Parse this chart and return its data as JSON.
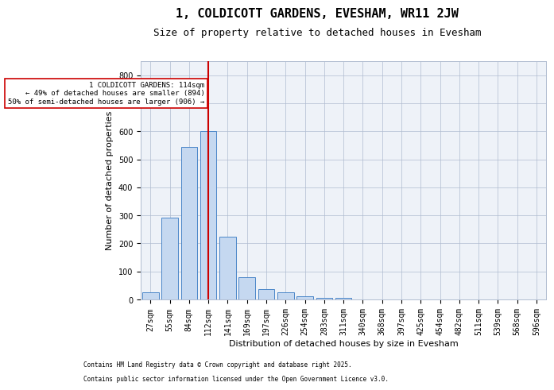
{
  "title1": "1, COLDICOTT GARDENS, EVESHAM, WR11 2JW",
  "title2": "Size of property relative to detached houses in Evesham",
  "xlabel": "Distribution of detached houses by size in Evesham",
  "ylabel": "Number of detached properties",
  "categories": [
    "27sqm",
    "55sqm",
    "84sqm",
    "112sqm",
    "141sqm",
    "169sqm",
    "197sqm",
    "226sqm",
    "254sqm",
    "283sqm",
    "311sqm",
    "340sqm",
    "368sqm",
    "397sqm",
    "425sqm",
    "454sqm",
    "482sqm",
    "511sqm",
    "539sqm",
    "568sqm",
    "596sqm"
  ],
  "values": [
    25,
    292,
    545,
    600,
    225,
    80,
    38,
    25,
    10,
    7,
    5,
    0,
    0,
    0,
    0,
    0,
    0,
    0,
    0,
    0,
    0
  ],
  "bar_color": "#c5d8f0",
  "bar_edge_color": "#4a86c8",
  "vline_x_index": 3,
  "vline_color": "#cc0000",
  "annotation_line1": "1 COLDICOTT GARDENS: 114sqm",
  "annotation_line2": "← 49% of detached houses are smaller (894)",
  "annotation_line3": "50% of semi-detached houses are larger (906) →",
  "annotation_box_color": "#ffffff",
  "annotation_box_edge": "#cc0000",
  "ylim": [
    0,
    850
  ],
  "yticks": [
    0,
    100,
    200,
    300,
    400,
    500,
    600,
    700,
    800
  ],
  "background_color": "#eef2f8",
  "footer_line1": "Contains HM Land Registry data © Crown copyright and database right 2025.",
  "footer_line2": "Contains public sector information licensed under the Open Government Licence v3.0.",
  "title_fontsize": 11,
  "subtitle_fontsize": 9,
  "axis_fontsize": 8,
  "tick_fontsize": 7
}
